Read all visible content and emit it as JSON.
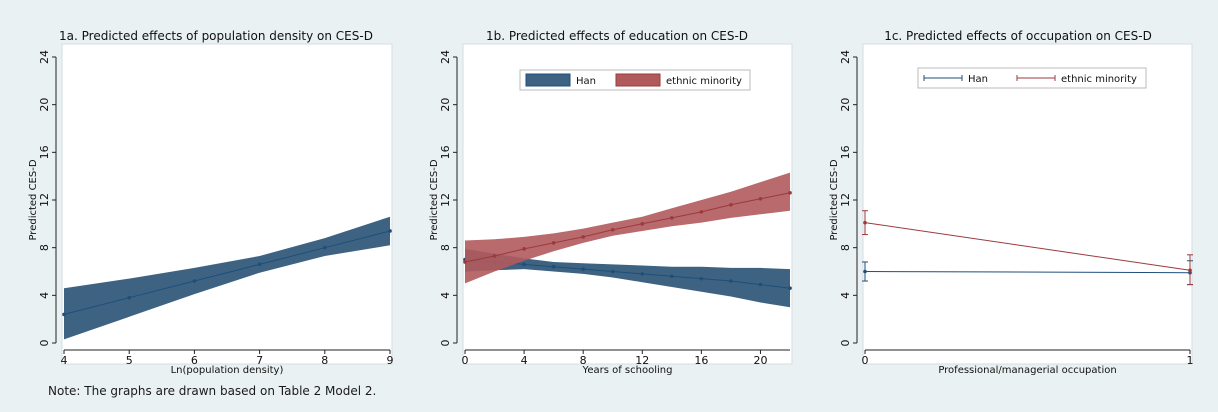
{
  "note": "Note: The graphs are drawn based on Table 2 Model 2.",
  "colors": {
    "background": "#eaf1f3",
    "plot_bg": "#ffffff",
    "han": "#1f4e79",
    "han_fill": "#3e6382",
    "minority": "#9b3a3c",
    "minority_fill": "#b05a5c"
  },
  "chart_data": [
    {
      "type": "line",
      "title": "1a. Predicted effects of population density on CES-D",
      "xlabel": "Ln(population density)",
      "ylabel": "Predicted CES-D",
      "xlim": [
        4,
        9
      ],
      "ylim": [
        0,
        24
      ],
      "x_ticks": [
        "4",
        "5",
        "6",
        "7",
        "8",
        "9"
      ],
      "y_ticks": [
        "0",
        "4",
        "8",
        "12",
        "16",
        "20",
        "24"
      ],
      "legend": [],
      "series": [
        {
          "x": [
            4,
            5,
            6,
            7,
            8,
            9
          ],
          "y": [
            2.4,
            3.8,
            5.2,
            6.6,
            8.0,
            9.4
          ],
          "lower": [
            0.3,
            2.2,
            4.1,
            5.9,
            7.3,
            8.2
          ],
          "upper": [
            4.6,
            5.4,
            6.3,
            7.3,
            8.8,
            10.6
          ]
        }
      ]
    },
    {
      "type": "line",
      "title": "1b. Predicted effects of education on CES-D",
      "xlabel": "Years of schooling",
      "ylabel": "Predicted CES-D",
      "xlim": [
        0,
        22
      ],
      "ylim": [
        0,
        24
      ],
      "x_ticks": [
        "0",
        "4",
        "8",
        "12",
        "16",
        "20"
      ],
      "y_ticks": [
        "0",
        "4",
        "8",
        "12",
        "16",
        "20",
        "24"
      ],
      "legend": [
        "Han",
        "ethnic minority"
      ],
      "legend_placement": "top-center",
      "series": [
        {
          "name": "Han",
          "x": [
            0,
            2,
            4,
            6,
            8,
            10,
            12,
            14,
            16,
            18,
            20,
            22
          ],
          "y": [
            7.0,
            6.8,
            6.6,
            6.4,
            6.2,
            6.0,
            5.8,
            5.6,
            5.4,
            5.2,
            4.9,
            4.6
          ],
          "lower": [
            6.0,
            6.1,
            6.2,
            6.0,
            5.8,
            5.5,
            5.1,
            4.7,
            4.3,
            3.9,
            3.4,
            3.0
          ],
          "upper": [
            7.9,
            7.5,
            7.1,
            6.8,
            6.7,
            6.6,
            6.5,
            6.4,
            6.4,
            6.3,
            6.3,
            6.2
          ]
        },
        {
          "name": "ethnic minority",
          "x": [
            0,
            2,
            4,
            6,
            8,
            10,
            12,
            14,
            16,
            18,
            20,
            22
          ],
          "y": [
            6.8,
            7.3,
            7.9,
            8.4,
            8.9,
            9.5,
            10.0,
            10.5,
            11.0,
            11.6,
            12.1,
            12.6
          ],
          "lower": [
            5.0,
            6.0,
            6.9,
            7.7,
            8.4,
            9.0,
            9.4,
            9.8,
            10.1,
            10.5,
            10.8,
            11.1
          ],
          "upper": [
            8.6,
            8.7,
            8.9,
            9.2,
            9.6,
            10.1,
            10.6,
            11.3,
            12.0,
            12.7,
            13.5,
            14.3
          ]
        }
      ]
    },
    {
      "type": "line",
      "title": "1c. Predicted effects of occupation on CES-D",
      "xlabel": "Professional/managerial occupation",
      "ylabel": "Predicted CES-D",
      "xlim": [
        0,
        1
      ],
      "ylim": [
        0,
        24
      ],
      "x_ticks": [
        "0",
        "1"
      ],
      "y_ticks": [
        "0",
        "4",
        "8",
        "12",
        "16",
        "20",
        "24"
      ],
      "legend": [
        "Han",
        "ethnic minority"
      ],
      "legend_placement": "top-center",
      "series": [
        {
          "name": "Han",
          "x": [
            0,
            1
          ],
          "y": [
            6.0,
            5.9
          ],
          "lower": [
            5.2,
            4.9
          ],
          "upper": [
            6.8,
            6.9
          ]
        },
        {
          "name": "ethnic minority",
          "x": [
            0,
            1
          ],
          "y": [
            10.1,
            6.1
          ],
          "lower": [
            9.1,
            4.9
          ],
          "upper": [
            11.1,
            7.4
          ]
        }
      ]
    }
  ]
}
